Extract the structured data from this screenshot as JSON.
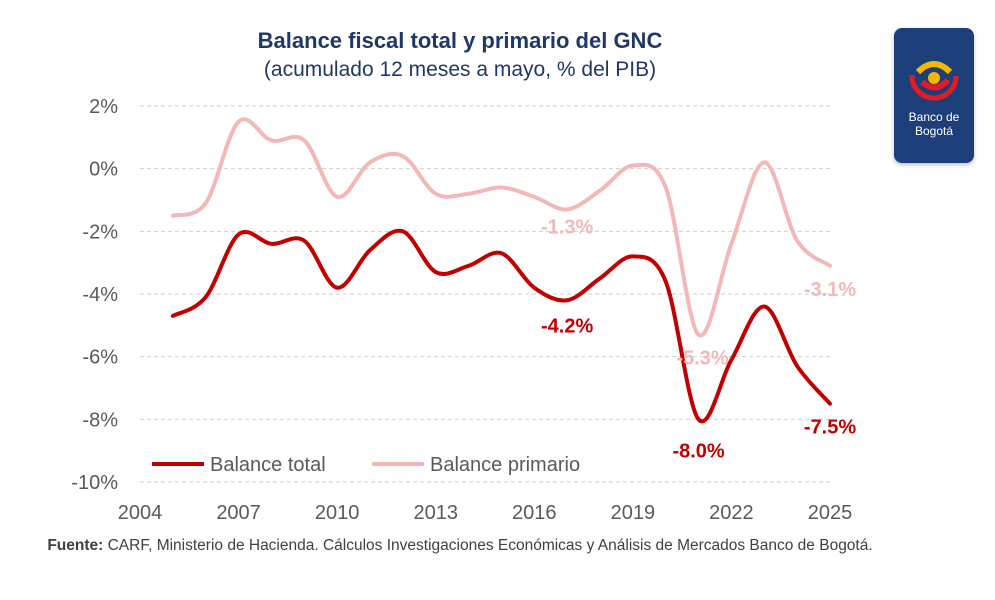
{
  "header": {
    "title": "Balance fiscal total y primario del GNC",
    "subtitle": "(acumulado 12 meses a mayo, % del PIB)"
  },
  "logo": {
    "line1": "Banco de",
    "line2": "Bogotá",
    "color": "#1c3f7a"
  },
  "source": {
    "label": "Fuente:",
    "text": "CARF, Ministerio de Hacienda. Cálculos Investigaciones Económicas y Análisis de Mercados Banco de Bogotá."
  },
  "chart_data": {
    "type": "line",
    "title": "Balance fiscal total y primario del GNC",
    "subtitle": "(acumulado 12 meses a mayo, % del PIB)",
    "xlim": [
      2004,
      2025
    ],
    "ylim": [
      -10,
      2
    ],
    "x_ticks": [
      2004,
      2007,
      2010,
      2013,
      2016,
      2019,
      2022,
      2025
    ],
    "x_tick_labels": [
      "2004",
      "2007",
      "2010",
      "2013",
      "2016",
      "2019",
      "2022",
      "2025"
    ],
    "y_ticks": [
      2,
      0,
      -2,
      -4,
      -6,
      -8,
      -10
    ],
    "y_tick_labels": [
      "2%",
      "0%",
      "-2%",
      "-4%",
      "-6%",
      "-8%",
      "-10%"
    ],
    "grid": "horizontal-dashed",
    "legend_position": "bottom-left",
    "series": [
      {
        "name": "Balance total",
        "color": "#c00000",
        "x": [
          2005,
          2006,
          2007,
          2008,
          2009,
          2010,
          2011,
          2012,
          2013,
          2014,
          2015,
          2016,
          2017,
          2018,
          2019,
          2020,
          2021,
          2022,
          2023,
          2024,
          2025
        ],
        "y": [
          -4.7,
          -4.1,
          -2.1,
          -2.4,
          -2.3,
          -3.8,
          -2.6,
          -2.0,
          -3.3,
          -3.1,
          -2.7,
          -3.8,
          -4.2,
          -3.5,
          -2.8,
          -3.6,
          -8.0,
          -6.1,
          -4.4,
          -6.3,
          -7.5
        ]
      },
      {
        "name": "Balance primario",
        "color": "#f2b8b8",
        "x": [
          2005,
          2006,
          2007,
          2008,
          2009,
          2010,
          2011,
          2012,
          2013,
          2014,
          2015,
          2016,
          2017,
          2018,
          2019,
          2020,
          2021,
          2022,
          2023,
          2024,
          2025
        ],
        "y": [
          -1.5,
          -1.1,
          1.5,
          0.9,
          0.9,
          -0.9,
          0.2,
          0.4,
          -0.8,
          -0.8,
          -0.6,
          -0.9,
          -1.3,
          -0.7,
          0.1,
          -0.6,
          -5.3,
          -2.4,
          0.2,
          -2.3,
          -3.1
        ]
      }
    ],
    "annotations": [
      {
        "series": 0,
        "x": 2017,
        "text": "-4.2%"
      },
      {
        "series": 0,
        "x": 2021,
        "text": "-8.0%"
      },
      {
        "series": 0,
        "x": 2025,
        "text": "-7.5%"
      },
      {
        "series": 1,
        "x": 2017,
        "text": "-1.3%"
      },
      {
        "series": 1,
        "x": 2021,
        "text": "-5.3%"
      },
      {
        "series": 1,
        "x": 2025,
        "text": "-3.1%"
      }
    ]
  }
}
